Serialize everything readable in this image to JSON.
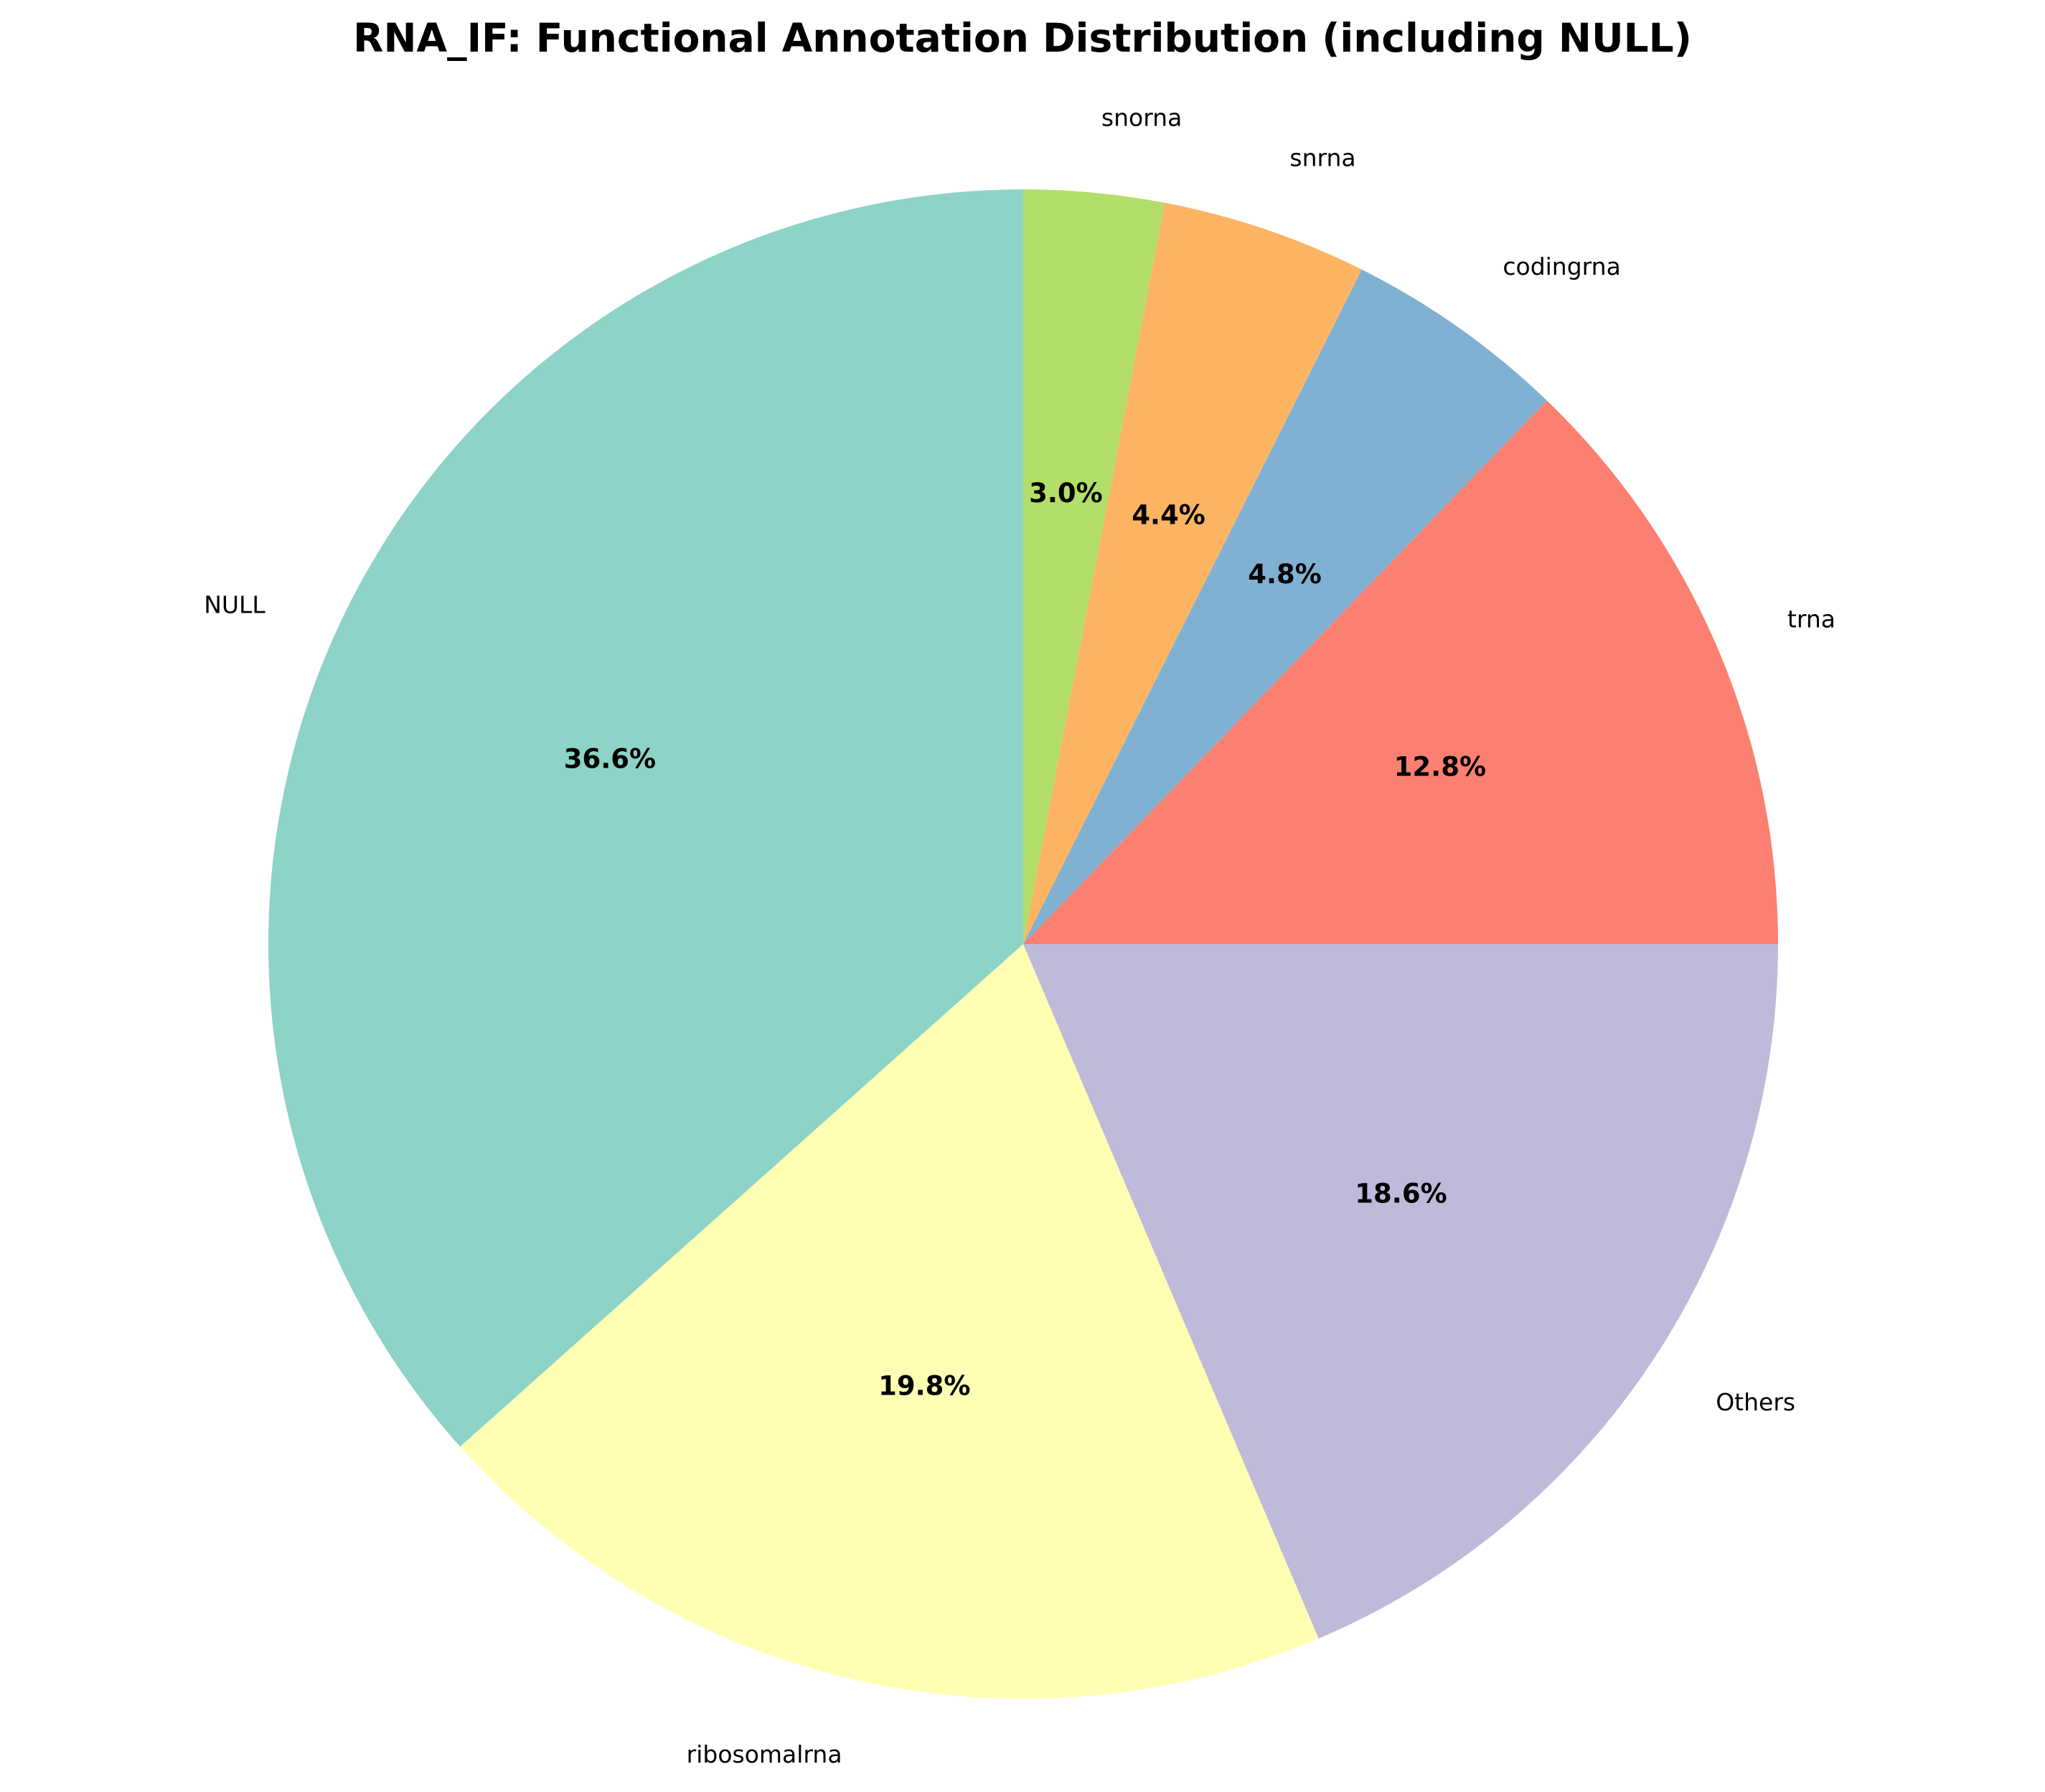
{
  "chart_data": {
    "type": "pie",
    "title": "RNA_IF: Functional Annotation Distribution (including NULL)",
    "start_angle_deg": 90,
    "direction": "counterclockwise",
    "slices": [
      {
        "label": "NULL",
        "value": 36.6,
        "pct_label": "36.6%",
        "color": "#8dd3c7"
      },
      {
        "label": "ribosomalrna",
        "value": 19.8,
        "pct_label": "19.8%",
        "color": "#ffffb3"
      },
      {
        "label": "Others",
        "value": 18.6,
        "pct_label": "18.6%",
        "color": "#bebada"
      },
      {
        "label": "trna",
        "value": 12.8,
        "pct_label": "12.8%",
        "color": "#fb8072"
      },
      {
        "label": "codingrna",
        "value": 4.8,
        "pct_label": "4.8%",
        "color": "#80b1d3"
      },
      {
        "label": "snrna",
        "value": 4.4,
        "pct_label": "4.4%",
        "color": "#fdb462"
      },
      {
        "label": "snorna",
        "value": 3.0,
        "pct_label": "3.0%",
        "color": "#b3de69"
      }
    ]
  }
}
